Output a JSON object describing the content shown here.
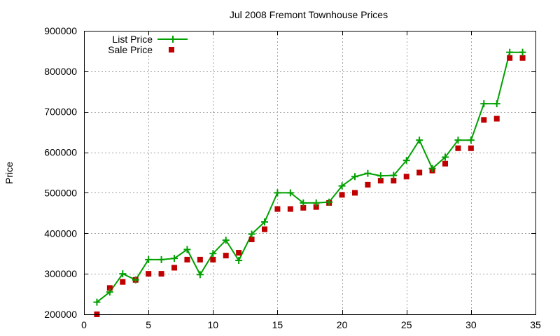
{
  "chart_data": {
    "type": "line",
    "title": "Jul 2008 Fremont Townhouse Prices",
    "xlabel": "",
    "ylabel": "Price",
    "xlim": [
      0,
      35
    ],
    "ylim": [
      200000,
      900000
    ],
    "xticks": [
      0,
      5,
      10,
      15,
      20,
      25,
      30,
      35
    ],
    "yticks": [
      200000,
      300000,
      400000,
      500000,
      600000,
      700000,
      800000,
      900000
    ],
    "grid": true,
    "legend_position": "top-left",
    "series": [
      {
        "name": "List Price",
        "style": "line+cross",
        "color": "#00a000",
        "x": [
          1,
          2,
          3,
          4,
          5,
          6,
          7,
          8,
          9,
          10,
          11,
          12,
          13,
          14,
          15,
          16,
          17,
          18,
          19,
          20,
          21,
          22,
          23,
          24,
          25,
          26,
          27,
          28,
          29,
          30,
          31,
          32,
          33,
          34
        ],
        "y": [
          230000,
          255000,
          300000,
          285000,
          335000,
          335000,
          338000,
          360000,
          298000,
          350000,
          383000,
          333000,
          398000,
          428000,
          500000,
          500000,
          475000,
          475000,
          477000,
          517000,
          540000,
          548000,
          542000,
          543000,
          580000,
          630000,
          560000,
          588000,
          630000,
          630000,
          720000,
          720000,
          847000,
          847000
        ]
      },
      {
        "name": "Sale Price",
        "style": "square",
        "color": "#c00000",
        "x": [
          1,
          2,
          3,
          4,
          5,
          6,
          7,
          8,
          9,
          10,
          11,
          12,
          13,
          14,
          15,
          16,
          17,
          18,
          19,
          20,
          21,
          22,
          23,
          24,
          25,
          26,
          27,
          28,
          29,
          30,
          31,
          32,
          33,
          34
        ],
        "y": [
          200000,
          265000,
          280000,
          285000,
          300000,
          300000,
          315000,
          335000,
          335000,
          335000,
          345000,
          352000,
          385000,
          410000,
          460000,
          460000,
          463000,
          465000,
          475000,
          495000,
          500000,
          520000,
          530000,
          530000,
          540000,
          550000,
          555000,
          572000,
          610000,
          610000,
          680000,
          683000,
          833000,
          833000
        ]
      }
    ]
  }
}
